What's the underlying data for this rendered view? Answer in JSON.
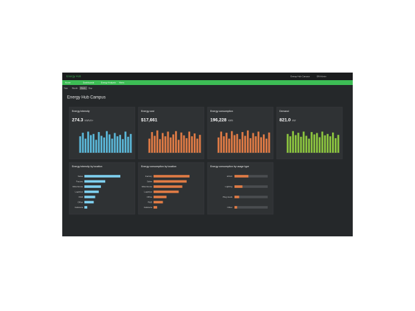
{
  "header": {
    "app": "Energy Hub",
    "site": "Energy Hub Campus",
    "user": "EM Admin"
  },
  "nav": [
    "Home",
    "Dashboards",
    "Energy Analysis",
    "Alerts"
  ],
  "tabs": [
    "Year",
    "Month",
    "Week",
    "Day"
  ],
  "page_title": "Energy Hub Campus",
  "kpis": [
    {
      "title": "Energy intensity",
      "value": "274.3",
      "unit": "kWh/m²",
      "color": "#5bb8d9",
      "bars": [
        70,
        85,
        60,
        90,
        75,
        80,
        55,
        88,
        72,
        65,
        92,
        78,
        60,
        84,
        70,
        76,
        58,
        90,
        68,
        80
      ]
    },
    {
      "title": "Energy cost",
      "value": "$17,661",
      "unit": "",
      "color": "#e07b45",
      "bars": [
        60,
        88,
        72,
        95,
        58,
        84,
        70,
        90,
        65,
        78,
        92,
        55,
        86,
        74,
        62,
        90,
        70,
        82,
        60,
        76
      ]
    },
    {
      "title": "Energy consumption",
      "value": "196,228",
      "unit": "kWh",
      "color": "#e07b45",
      "bars": [
        65,
        90,
        70,
        85,
        60,
        92,
        75,
        80,
        58,
        88,
        72,
        95,
        62,
        84,
        70,
        90,
        66,
        78,
        60,
        86
      ]
    },
    {
      "title": "Demand",
      "value": "821.0",
      "unit": "kW",
      "color": "#8dc63f",
      "bars": [
        80,
        70,
        92,
        75,
        85,
        68,
        90,
        72,
        60,
        88,
        78,
        84,
        66,
        90,
        74,
        80,
        70,
        86,
        62,
        76
      ]
    }
  ],
  "breakdowns": [
    {
      "title": "Energy intensity by location",
      "color": "#7fd0ef",
      "rows": [
        {
          "label": "Sales",
          "value": 100
        },
        {
          "label": "Factory",
          "value": 58
        },
        {
          "label": "Warehouse",
          "value": 46
        },
        {
          "label": "Logistics",
          "value": 40
        },
        {
          "label": "R&D",
          "value": 30
        },
        {
          "label": "Office",
          "value": 26
        },
        {
          "label": "Cafeteria",
          "value": 8
        }
      ]
    },
    {
      "title": "Energy consumption by location",
      "color": "#e07b45",
      "rows": [
        {
          "label": "Factory",
          "value": 100
        },
        {
          "label": "Sales",
          "value": 92
        },
        {
          "label": "Warehouse",
          "value": 80
        },
        {
          "label": "Logistics",
          "value": 70
        },
        {
          "label": "Office",
          "value": 36
        },
        {
          "label": "R&D",
          "value": 26
        },
        {
          "label": "Cafeteria",
          "value": 10
        }
      ]
    }
  ],
  "usage": {
    "title": "Energy consumption by usage type",
    "color": "#e07b45",
    "rows": [
      {
        "label": "HVAC",
        "value": 42
      },
      {
        "label": "Lighting",
        "value": 24
      },
      {
        "label": "Plug loads",
        "value": 14
      },
      {
        "label": "Other",
        "value": 8
      }
    ]
  }
}
